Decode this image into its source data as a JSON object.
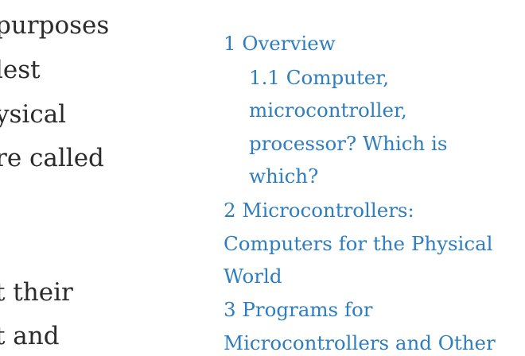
{
  "article": {
    "lines": [
      "purposes",
      "lest",
      "ysical",
      "re called",
      "",
      "",
      "t their",
      "t and"
    ]
  },
  "toc": {
    "items": [
      {
        "lines": [
          "1 Overview"
        ]
      },
      {
        "lines": [
          "1.1 Computer,",
          "microcontroller,",
          "processor? Which is",
          "which?"
        ]
      },
      {
        "lines": [
          "2 Microcontrollers:",
          "Computers for the Physical",
          "World"
        ]
      },
      {
        "lines": [
          "3 Programs for",
          "Microcontrollers and Other"
        ]
      }
    ]
  },
  "colors": {
    "link": "#2e7dbf",
    "text": "#2b2b2b",
    "background": "#ffffff"
  }
}
